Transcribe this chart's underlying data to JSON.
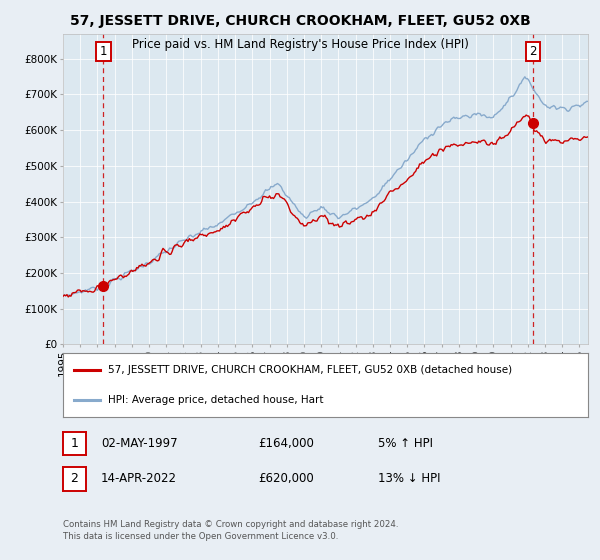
{
  "title": "57, JESSETT DRIVE, CHURCH CROOKHAM, FLEET, GU52 0XB",
  "subtitle": "Price paid vs. HM Land Registry's House Price Index (HPI)",
  "ylabel_ticks": [
    "£0",
    "£100K",
    "£200K",
    "£300K",
    "£400K",
    "£500K",
    "£600K",
    "£700K",
    "£800K"
  ],
  "ylim": [
    0,
    870000
  ],
  "xlim_start": 1995.0,
  "xlim_end": 2025.5,
  "sale1_date": 1997.35,
  "sale1_price": 164000,
  "sale1_label": "1",
  "sale2_date": 2022.28,
  "sale2_price": 620000,
  "sale2_label": "2",
  "red_color": "#cc0000",
  "blue_color": "#88aacc",
  "legend_line1": "57, JESSETT DRIVE, CHURCH CROOKHAM, FLEET, GU52 0XB (detached house)",
  "legend_line2": "HPI: Average price, detached house, Hart",
  "table_row1": [
    "1",
    "02-MAY-1997",
    "£164,000",
    "5% ↑ HPI"
  ],
  "table_row2": [
    "2",
    "14-APR-2022",
    "£620,000",
    "13% ↓ HPI"
  ],
  "footnote": "Contains HM Land Registry data © Crown copyright and database right 2024.\nThis data is licensed under the Open Government Licence v3.0.",
  "background_color": "#e8eef4",
  "plot_bg_color": "#dce8f0"
}
